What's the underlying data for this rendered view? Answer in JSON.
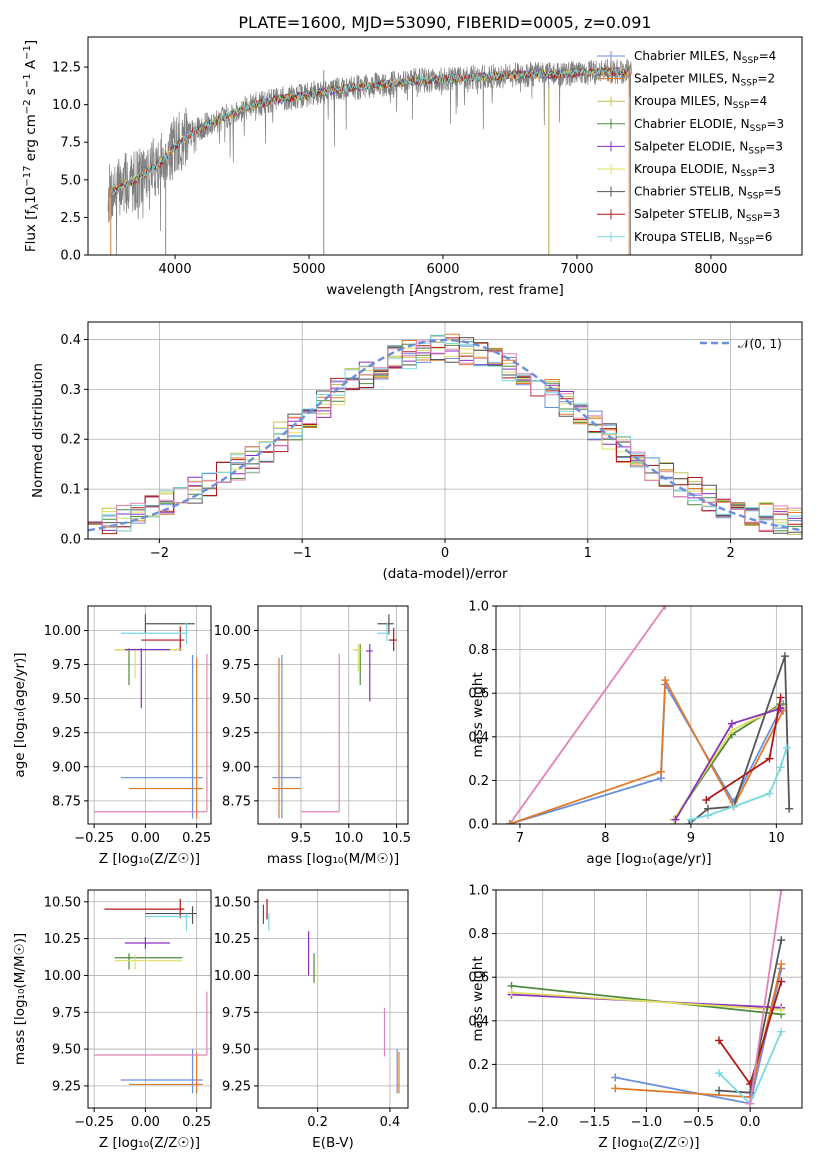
{
  "figure": {
    "title": "PLATE=1600, MJD=53090, FIBERID=0005, z=0.091"
  },
  "colors": {
    "Chabrier MILES": "#6a8fdc",
    "Salpeter MILES": "#e07b2a",
    "Kroupa MILES": "#c8c050",
    "Chabrier ELODIE": "#4e8a3c",
    "Salpeter ELODIE": "#8a2fc0",
    "Kroupa ELODIE": "#e0e060",
    "Chabrier STELIB": "#555555",
    "Salpeter STELIB": "#b01818",
    "Kroupa STELIB": "#7ad8e0",
    "pink": "#e083b8",
    "data": "#7f7f7f",
    "grid": "#b0b0b0"
  },
  "chart_data": [
    {
      "type": "line",
      "panel": "spectrum",
      "xlabel": "wavelength [Angstrom, rest frame]",
      "ylabel_parts": [
        "Flux [f",
        "λ",
        "10",
        "−17",
        " erg cm",
        "−2",
        " s",
        "−1",
        " A",
        "−1",
        "]"
      ],
      "xlim": [
        3350,
        8680
      ],
      "ylim": [
        0,
        14.5
      ],
      "xticks": [
        "4000",
        "5000",
        "6000",
        "7000",
        "8000"
      ],
      "yticks": [
        "0.0",
        "2.5",
        "5.0",
        "7.5",
        "10.0",
        "12.5"
      ],
      "continuum": {
        "x": [
          3500,
          3600,
          3700,
          3800,
          3900,
          4000,
          4100,
          4200,
          4300,
          4400,
          4500,
          4600,
          4700,
          4800,
          4900,
          5000,
          5200,
          5400,
          5600,
          5800,
          6000,
          6200,
          6400,
          6600,
          6800,
          7000,
          7200,
          7400
        ],
        "y": [
          4.0,
          4.6,
          5.0,
          5.6,
          6.2,
          7.2,
          8.0,
          8.5,
          8.9,
          9.3,
          9.7,
          10.0,
          10.2,
          10.4,
          10.5,
          10.7,
          11.0,
          11.2,
          11.4,
          11.6,
          11.7,
          11.8,
          11.9,
          12.0,
          12.0,
          12.1,
          12.2,
          12.2
        ]
      },
      "legend": [
        {
          "name": "Chabrier MILES",
          "sub": "4",
          "marker": true
        },
        {
          "name": "Salpeter MILES",
          "sub": "2",
          "marker": true
        },
        {
          "name": "Kroupa MILES",
          "sub": "4",
          "marker": true
        },
        {
          "name": "Chabrier ELODIE",
          "sub": "3",
          "marker": true
        },
        {
          "name": "Salpeter ELODIE",
          "sub": "3",
          "marker": true
        },
        {
          "name": "Kroupa ELODIE",
          "sub": "3",
          "marker": true
        },
        {
          "name": "Chabrier STELIB",
          "sub": "5",
          "marker": true
        },
        {
          "name": "Salpeter STELIB",
          "sub": "3",
          "marker": true
        },
        {
          "name": "Kroupa STELIB",
          "sub": "6",
          "marker": true
        }
      ],
      "legend_prefix": "N",
      "legend_sub": "SSP"
    },
    {
      "type": "line",
      "panel": "histogram",
      "xlabel": "(data-model)/error",
      "ylabel": "Normed distribution",
      "xlim": [
        -2.5,
        2.5
      ],
      "ylim": [
        0,
        0.435
      ],
      "xticks": [
        -2,
        -1,
        0,
        1,
        2
      ],
      "xtick_labels": [
        "−2",
        "−1",
        "0",
        "1",
        "2"
      ],
      "yticks": [
        0.0,
        0.1,
        0.2,
        0.3,
        0.4
      ],
      "ytick_labels": [
        "0.0",
        "0.1",
        "0.2",
        "0.3",
        "0.4"
      ],
      "reference_label": "𝒩(0, 1)",
      "bin_width": 0.1
    },
    {
      "type": "scatter",
      "panel": "age-vs-Z",
      "xlabel": "Z [log₁₀(Z/Z☉)]",
      "ylabel": "age  [log₁₀(age/yr)]",
      "xlim": [
        -0.28,
        0.32
      ],
      "ylim": [
        8.58,
        10.18
      ],
      "xticks": [
        "−0.25",
        "0.00",
        "0.25"
      ],
      "yticks": [
        "8.75",
        "9.00",
        "9.25",
        "9.50",
        "9.75",
        "10.00"
      ],
      "points": [
        {
          "s": "Chabrier STELIB",
          "x": 0.0,
          "y": 10.05,
          "x0": 0.0,
          "x1": 0.24,
          "y0": 9.98,
          "y1": 10.12
        },
        {
          "s": "Salpeter STELIB",
          "x": 0.17,
          "y": 9.93,
          "x0": -0.02,
          "x1": 0.19,
          "y0": 9.85,
          "y1": 10.03
        },
        {
          "s": "Kroupa STELIB",
          "x": 0.2,
          "y": 9.98,
          "x0": -0.12,
          "x1": 0.2,
          "y0": 9.9,
          "y1": 10.06
        },
        {
          "s": "Chabrier ELODIE",
          "x": -0.08,
          "y": 9.86,
          "x0": -0.15,
          "x1": 0.18,
          "y0": 9.6,
          "y1": 9.87
        },
        {
          "s": "Kroupa ELODIE",
          "x": -0.05,
          "y": 9.86,
          "x0": -0.15,
          "x1": 0.18,
          "y0": 9.65,
          "y1": 9.87
        },
        {
          "s": "Salpeter ELODIE",
          "x": -0.02,
          "y": 9.86,
          "x0": -0.1,
          "x1": 0.12,
          "y0": 9.43,
          "y1": 9.87
        },
        {
          "s": "Chabrier MILES",
          "x": 0.23,
          "y": 8.92,
          "x0": -0.12,
          "x1": 0.28,
          "y0": 8.62,
          "y1": 9.82
        },
        {
          "s": "Salpeter MILES",
          "x": 0.25,
          "y": 8.84,
          "x0": -0.08,
          "x1": 0.28,
          "y0": 8.62,
          "y1": 9.8
        },
        {
          "s": "pink",
          "x": 0.3,
          "y": 8.67,
          "x0": -0.25,
          "x1": 0.3,
          "y0": 8.67,
          "y1": 9.83
        }
      ]
    },
    {
      "type": "scatter",
      "panel": "age-vs-mass",
      "xlabel": "mass [log₁₀(M/M☉)]",
      "ylabel": "",
      "xlim": [
        9.05,
        10.62
      ],
      "ylim": [
        8.58,
        10.18
      ],
      "xticks": [
        "9.5",
        "10.0",
        "10.5"
      ],
      "yticks": [
        "8.75",
        "9.00",
        "9.25",
        "9.50",
        "9.75",
        "10.00"
      ],
      "points": [
        {
          "s": "Chabrier STELIB",
          "x": 10.42,
          "y": 10.05,
          "x0": 10.3,
          "x1": 10.47,
          "y0": 9.97,
          "y1": 10.12
        },
        {
          "s": "Salpeter STELIB",
          "x": 10.47,
          "y": 9.93,
          "x0": 10.42,
          "x1": 10.5,
          "y0": 9.85,
          "y1": 10.02
        },
        {
          "s": "Kroupa STELIB",
          "x": 10.4,
          "y": 9.98,
          "x0": 10.3,
          "x1": 10.42,
          "y0": 9.92,
          "y1": 10.06
        },
        {
          "s": "Chabrier ELODIE",
          "x": 10.12,
          "y": 9.86,
          "x0": 10.05,
          "x1": 10.14,
          "y0": 9.6,
          "y1": 9.9
        },
        {
          "s": "Kroupa ELODIE",
          "x": 10.1,
          "y": 9.86,
          "x0": 10.04,
          "x1": 10.14,
          "y0": 9.7,
          "y1": 9.9
        },
        {
          "s": "Salpeter ELODIE",
          "x": 10.22,
          "y": 9.85,
          "x0": 10.18,
          "x1": 10.25,
          "y0": 9.48,
          "y1": 9.9
        },
        {
          "s": "Chabrier MILES",
          "x": 9.3,
          "y": 8.92,
          "x0": 9.2,
          "x1": 9.5,
          "y0": 8.62,
          "y1": 9.82
        },
        {
          "s": "Salpeter MILES",
          "x": 9.27,
          "y": 8.84,
          "x0": 9.2,
          "x1": 9.5,
          "y0": 8.62,
          "y1": 9.8
        },
        {
          "s": "pink",
          "x": 9.9,
          "y": 8.67,
          "x0": 9.5,
          "x1": 9.9,
          "y0": 8.67,
          "y1": 9.83
        }
      ]
    },
    {
      "type": "line",
      "panel": "mass-weight-vs-age",
      "xlabel": "age  [log₁₀(age/yr)]",
      "ylabel": "mass weight",
      "xlim": [
        6.72,
        10.3
      ],
      "ylim": [
        0,
        1.0
      ],
      "xticks": [
        "7",
        "8",
        "9",
        "10"
      ],
      "yticks": [
        "0.0",
        "0.2",
        "0.4",
        "0.6",
        "0.8",
        "1.0"
      ],
      "series": [
        {
          "s": "pink",
          "x": [
            6.88,
            8.7
          ],
          "y": [
            0.0,
            1.0
          ]
        },
        {
          "s": "Chabrier MILES",
          "x": [
            6.88,
            8.65,
            8.7,
            9.5,
            10.08
          ],
          "y": [
            0.0,
            0.21,
            0.64,
            0.1,
            0.55
          ]
        },
        {
          "s": "Salpeter MILES",
          "x": [
            6.88,
            8.65,
            8.7,
            9.5,
            10.08
          ],
          "y": [
            0.0,
            0.24,
            0.66,
            0.08,
            0.52
          ]
        },
        {
          "s": "Chabrier ELODIE",
          "x": [
            8.8,
            9.48,
            10.05
          ],
          "y": [
            0.02,
            0.41,
            0.55
          ]
        },
        {
          "s": "Kroupa ELODIE",
          "x": [
            8.8,
            9.48,
            10.05
          ],
          "y": [
            0.02,
            0.43,
            0.54
          ]
        },
        {
          "s": "Salpeter ELODIE",
          "x": [
            8.82,
            9.48,
            10.05
          ],
          "y": [
            0.02,
            0.46,
            0.53
          ]
        },
        {
          "s": "Chabrier STELIB",
          "x": [
            8.98,
            9.2,
            9.5,
            10.1,
            10.15
          ],
          "y": [
            0.0,
            0.07,
            0.08,
            0.77,
            0.07
          ]
        },
        {
          "s": "Salpeter STELIB",
          "x": [
            9.18,
            9.92,
            10.05
          ],
          "y": [
            0.11,
            0.3,
            0.58
          ]
        },
        {
          "s": "Kroupa STELIB",
          "x": [
            9.0,
            9.2,
            9.5,
            9.92,
            10.05,
            10.12
          ],
          "y": [
            0.02,
            0.04,
            0.08,
            0.14,
            0.26,
            0.35
          ]
        }
      ]
    },
    {
      "type": "scatter",
      "panel": "mass-vs-Z",
      "xlabel": "Z [log₁₀(Z/Z☉)]",
      "ylabel": "mass [log₁₀(M/M☉)]",
      "xlim": [
        -0.28,
        0.32
      ],
      "ylim": [
        9.1,
        10.58
      ],
      "xticks": [
        "−0.25",
        "0.00",
        "0.25"
      ],
      "yticks": [
        "9.25",
        "9.50",
        "9.75",
        "10.00",
        "10.25",
        "10.50"
      ],
      "points": [
        {
          "s": "Salpeter STELIB",
          "x": 0.17,
          "y": 10.45,
          "x0": -0.2,
          "x1": 0.19,
          "y0": 10.39,
          "y1": 10.52
        },
        {
          "s": "Chabrier STELIB",
          "x": 0.23,
          "y": 10.42,
          "x0": 0.0,
          "x1": 0.25,
          "y0": 10.35,
          "y1": 10.47
        },
        {
          "s": "Kroupa STELIB",
          "x": 0.2,
          "y": 10.4,
          "x0": 0.0,
          "x1": 0.22,
          "y0": 10.3,
          "y1": 10.42
        },
        {
          "s": "Salpeter ELODIE",
          "x": 0.0,
          "y": 10.22,
          "x0": -0.1,
          "x1": 0.12,
          "y0": 10.18,
          "y1": 10.26
        },
        {
          "s": "Chabrier ELODIE",
          "x": -0.08,
          "y": 10.12,
          "x0": -0.15,
          "x1": 0.18,
          "y0": 10.04,
          "y1": 10.15
        },
        {
          "s": "Kroupa ELODIE",
          "x": -0.05,
          "y": 10.1,
          "x0": -0.15,
          "x1": 0.18,
          "y0": 10.04,
          "y1": 10.14
        },
        {
          "s": "Chabrier MILES",
          "x": 0.23,
          "y": 9.29,
          "x0": -0.12,
          "x1": 0.28,
          "y0": 9.2,
          "y1": 9.5
        },
        {
          "s": "Salpeter MILES",
          "x": 0.25,
          "y": 9.26,
          "x0": -0.08,
          "x1": 0.28,
          "y0": 9.2,
          "y1": 9.48
        },
        {
          "s": "pink",
          "x": 0.3,
          "y": 9.46,
          "x0": -0.25,
          "x1": 0.3,
          "y0": 9.46,
          "y1": 9.89
        }
      ]
    },
    {
      "type": "scatter",
      "panel": "mass-vs-EBV",
      "xlabel": "E(B-V)",
      "ylabel": "",
      "xlim": [
        0.035,
        0.45
      ],
      "ylim": [
        9.1,
        10.58
      ],
      "xticks": [
        "0.2",
        "0.4"
      ],
      "yticks": [
        "9.25",
        "9.50",
        "9.75",
        "10.00",
        "10.25",
        "10.50"
      ],
      "points": [
        {
          "s": "Chabrier STELIB",
          "x": 0.05,
          "y": 10.42,
          "x0": 0.05,
          "x1": 0.05,
          "y0": 10.35,
          "y1": 10.48
        },
        {
          "s": "Salpeter STELIB",
          "x": 0.06,
          "y": 10.45,
          "x0": 0.06,
          "x1": 0.06,
          "y0": 10.38,
          "y1": 10.52
        },
        {
          "s": "Kroupa STELIB",
          "x": 0.065,
          "y": 10.4,
          "x0": 0.065,
          "x1": 0.065,
          "y0": 10.3,
          "y1": 10.42
        },
        {
          "s": "Salpeter ELODIE",
          "x": 0.175,
          "y": 10.22,
          "x0": 0.175,
          "x1": 0.175,
          "y0": 10.0,
          "y1": 10.3
        },
        {
          "s": "Chabrier ELODIE",
          "x": 0.19,
          "y": 10.12,
          "x0": 0.19,
          "x1": 0.19,
          "y0": 9.95,
          "y1": 10.15
        },
        {
          "s": "Kroupa ELODIE",
          "x": 0.2,
          "y": 10.1,
          "x0": 0.2,
          "x1": 0.2,
          "y0": 9.92,
          "y1": 10.14
        },
        {
          "s": "pink",
          "x": 0.385,
          "y": 9.6,
          "x0": 0.385,
          "x1": 0.385,
          "y0": 9.45,
          "y1": 9.78
        },
        {
          "s": "Chabrier MILES",
          "x": 0.42,
          "y": 9.35,
          "x0": 0.42,
          "x1": 0.42,
          "y0": 9.2,
          "y1": 9.5
        },
        {
          "s": "Salpeter MILES",
          "x": 0.425,
          "y": 9.3,
          "x0": 0.425,
          "x1": 0.425,
          "y0": 9.2,
          "y1": 9.48
        }
      ]
    },
    {
      "type": "line",
      "panel": "mass-weight-vs-Z",
      "xlabel": "Z [log₁₀(Z/Z☉)]",
      "ylabel": "mass weight",
      "xlim": [
        -2.45,
        0.5
      ],
      "ylim": [
        0,
        1.0
      ],
      "xticks": [
        "−2.0",
        "−1.5",
        "−1.0",
        "−0.5",
        "0.0"
      ],
      "xtick_values": [
        -2.0,
        -1.5,
        -1.0,
        -0.5,
        0.0
      ],
      "yticks": [
        "0.0",
        "0.2",
        "0.4",
        "0.6",
        "0.8",
        "1.0"
      ],
      "series": [
        {
          "s": "Chabrier ELODIE",
          "x": [
            -2.3,
            0.3
          ],
          "y": [
            0.56,
            0.43
          ]
        },
        {
          "s": "Salpeter ELODIE",
          "x": [
            -2.3,
            0.3
          ],
          "y": [
            0.52,
            0.46
          ]
        },
        {
          "s": "Kroupa ELODIE",
          "x": [
            -2.3,
            0.3
          ],
          "y": [
            0.53,
            0.45
          ]
        },
        {
          "s": "Chabrier MILES",
          "x": [
            -1.3,
            0.0,
            0.3
          ],
          "y": [
            0.14,
            0.02,
            0.64
          ]
        },
        {
          "s": "Salpeter MILES",
          "x": [
            -1.3,
            0.0,
            0.3
          ],
          "y": [
            0.09,
            0.05,
            0.66
          ]
        },
        {
          "s": "Salpeter STELIB",
          "x": [
            -0.3,
            0.0,
            0.3
          ],
          "y": [
            0.31,
            0.11,
            0.58
          ]
        },
        {
          "s": "Chabrier STELIB",
          "x": [
            -0.3,
            0.0,
            0.3
          ],
          "y": [
            0.08,
            0.07,
            0.77
          ]
        },
        {
          "s": "Kroupa STELIB",
          "x": [
            -0.3,
            0.0,
            0.3
          ],
          "y": [
            0.16,
            0.02,
            0.35
          ]
        },
        {
          "s": "pink",
          "x": [
            0.0,
            0.3
          ],
          "y": [
            0.02,
            1.0
          ]
        }
      ]
    }
  ]
}
